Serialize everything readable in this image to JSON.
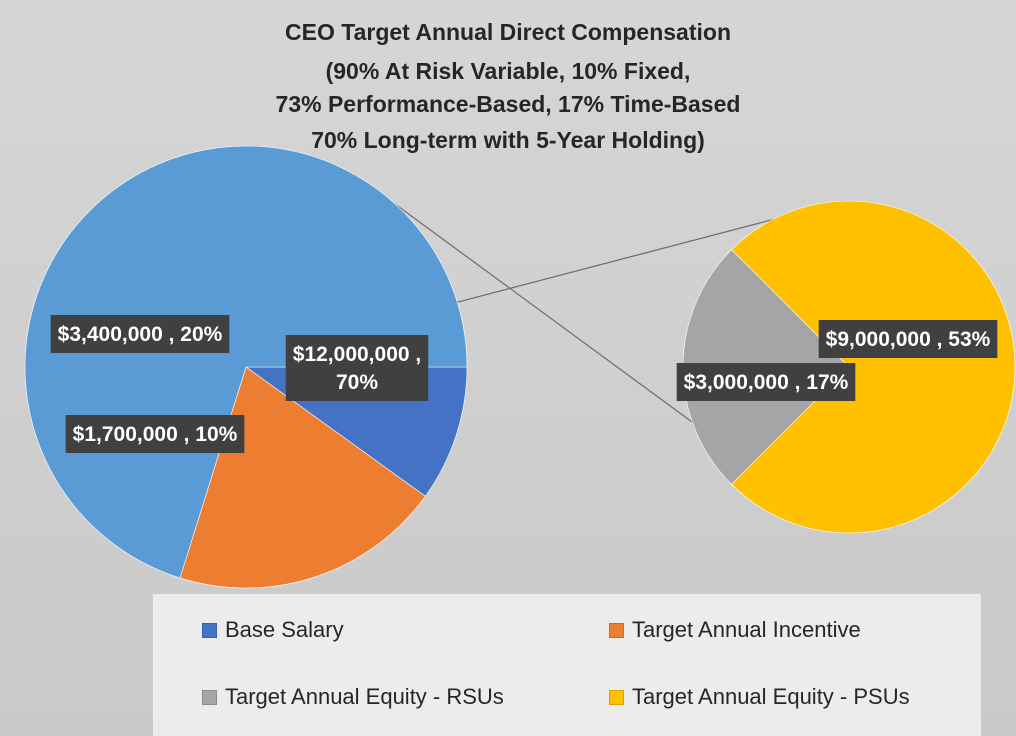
{
  "chart_data": {
    "type": "pie",
    "subtype": "pie-of-pie",
    "title": [
      "CEO Target Annual Direct Compensation",
      "(90% At Risk Variable, 10% Fixed,",
      "73% Performance-Based, 17% Time-Based",
      "70% Long-term with 5-Year Holding)"
    ],
    "main_pie": [
      {
        "name": "Base Salary",
        "value": 1700000,
        "label": "$1,700,000 , 10%",
        "color": "#4472c4"
      },
      {
        "name": "Target Annual Incentive",
        "value": 3400000,
        "label": "$3,400,000 , 20%",
        "color": "#ed7d31"
      },
      {
        "name": "",
        "value": 12000000,
        "label_lines": [
          "$12,000,000 ,",
          "70%"
        ],
        "color": "#5b9bd5"
      }
    ],
    "secondary_pie": [
      {
        "name": "Target Annual Equity - RSUs",
        "value": 3000000,
        "label": "$3,000,000 , 17%",
        "color": "#a5a5a5"
      },
      {
        "name": "Target Annual Equity - PSUs",
        "value": 9000000,
        "label": "$9,000,000 , 53%",
        "color": "#ffc000"
      }
    ],
    "legend_position": "bottom"
  },
  "legend": [
    {
      "label": "Base Salary",
      "color": "#4472c4"
    },
    {
      "label": "Target Annual Incentive",
      "color": "#ed7d31"
    },
    {
      "label": "Target Annual Equity - RSUs",
      "color": "#a5a5a5"
    },
    {
      "label": "Target Annual Equity - PSUs",
      "color": "#ffc000"
    }
  ]
}
